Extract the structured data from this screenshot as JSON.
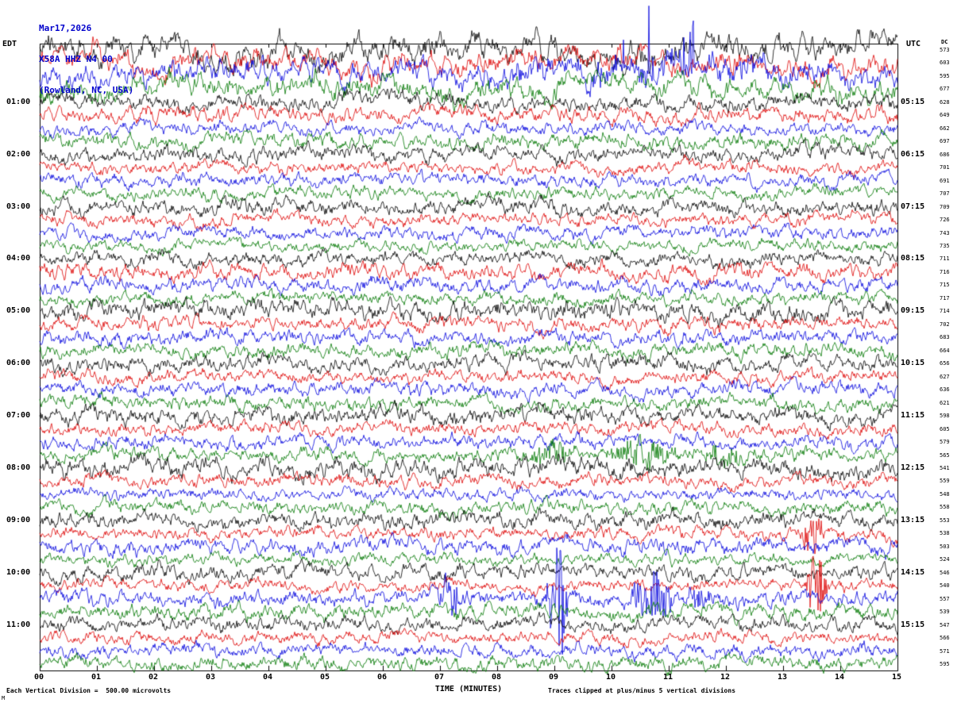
{
  "header": {
    "date": "Mar17,2026",
    "station": "X58A HHZ N4 00",
    "location": "(Rowland, NC, USA)"
  },
  "axes": {
    "left": "EDT",
    "right": "UTC",
    "dc": "DC"
  },
  "footer": {
    "left_note": "Each Vertical Division =  500.00 microvolts",
    "right_note": "Traces clipped at plus/minus 5 vertical divisions",
    "corner_mark": "M"
  },
  "chart_data": {
    "type": "line",
    "xlabel": "TIME (MINUTES)",
    "x_range": [
      0,
      15
    ],
    "x_ticks": [
      "00",
      "01",
      "02",
      "03",
      "04",
      "05",
      "06",
      "07",
      "08",
      "09",
      "10",
      "11",
      "12",
      "13",
      "14",
      "15"
    ],
    "row_duration_minutes": 15,
    "rows_per_hour": 4,
    "division_microvolts": 500,
    "clip_divisions": 5,
    "trace_colors": {
      "black": "#000000",
      "red": "#dd0000",
      "blue": "#0000dd",
      "green": "#007700"
    },
    "color_cycle": [
      "black",
      "red",
      "blue",
      "green"
    ],
    "rows": [
      {
        "edt": "",
        "utc": "",
        "dc": 573
      },
      {
        "edt": "",
        "utc": "",
        "dc": 603
      },
      {
        "edt": "",
        "utc": "",
        "dc": 595
      },
      {
        "edt": "",
        "utc": "",
        "dc": 677
      },
      {
        "edt": "01:00",
        "utc": "05:15",
        "dc": 628
      },
      {
        "edt": "",
        "utc": "",
        "dc": 649
      },
      {
        "edt": "",
        "utc": "",
        "dc": 662
      },
      {
        "edt": "",
        "utc": "",
        "dc": 697
      },
      {
        "edt": "02:00",
        "utc": "06:15",
        "dc": 686
      },
      {
        "edt": "",
        "utc": "",
        "dc": 701
      },
      {
        "edt": "",
        "utc": "",
        "dc": 691
      },
      {
        "edt": "",
        "utc": "",
        "dc": 707
      },
      {
        "edt": "03:00",
        "utc": "07:15",
        "dc": 709
      },
      {
        "edt": "",
        "utc": "",
        "dc": 726
      },
      {
        "edt": "",
        "utc": "",
        "dc": 743
      },
      {
        "edt": "",
        "utc": "",
        "dc": 735
      },
      {
        "edt": "04:00",
        "utc": "08:15",
        "dc": 711
      },
      {
        "edt": "",
        "utc": "",
        "dc": 716
      },
      {
        "edt": "",
        "utc": "",
        "dc": 715
      },
      {
        "edt": "",
        "utc": "",
        "dc": 717
      },
      {
        "edt": "05:00",
        "utc": "09:15",
        "dc": 714
      },
      {
        "edt": "",
        "utc": "",
        "dc": 702
      },
      {
        "edt": "",
        "utc": "",
        "dc": 683
      },
      {
        "edt": "",
        "utc": "",
        "dc": 664
      },
      {
        "edt": "06:00",
        "utc": "10:15",
        "dc": 656
      },
      {
        "edt": "",
        "utc": "",
        "dc": 627
      },
      {
        "edt": "",
        "utc": "",
        "dc": 636
      },
      {
        "edt": "",
        "utc": "",
        "dc": 621
      },
      {
        "edt": "07:00",
        "utc": "11:15",
        "dc": 598
      },
      {
        "edt": "",
        "utc": "",
        "dc": 605
      },
      {
        "edt": "",
        "utc": "",
        "dc": 579
      },
      {
        "edt": "",
        "utc": "",
        "dc": 565
      },
      {
        "edt": "08:00",
        "utc": "12:15",
        "dc": 541
      },
      {
        "edt": "",
        "utc": "",
        "dc": 559
      },
      {
        "edt": "",
        "utc": "",
        "dc": 548
      },
      {
        "edt": "",
        "utc": "",
        "dc": 558
      },
      {
        "edt": "09:00",
        "utc": "13:15",
        "dc": 553
      },
      {
        "edt": "",
        "utc": "",
        "dc": 538
      },
      {
        "edt": "",
        "utc": "",
        "dc": 503
      },
      {
        "edt": "",
        "utc": "",
        "dc": 524
      },
      {
        "edt": "10:00",
        "utc": "14:15",
        "dc": 546
      },
      {
        "edt": "",
        "utc": "",
        "dc": 540
      },
      {
        "edt": "",
        "utc": "",
        "dc": 557
      },
      {
        "edt": "",
        "utc": "",
        "dc": 539
      },
      {
        "edt": "11:00",
        "utc": "15:15",
        "dc": 547
      },
      {
        "edt": "",
        "utc": "",
        "dc": 566
      },
      {
        "edt": "",
        "utc": "",
        "dc": 571
      },
      {
        "edt": "",
        "utc": "",
        "dc": 595
      }
    ],
    "events": [
      {
        "row": 2,
        "start": 9.9,
        "end": 11.7,
        "amp": 85,
        "mode": "spike"
      },
      {
        "row": 2,
        "start": 7.3,
        "end": 13.5,
        "amp": 8,
        "mode": "burst"
      },
      {
        "row": 31,
        "start": 8.6,
        "end": 9.4,
        "amp": 14,
        "mode": "burst"
      },
      {
        "row": 31,
        "start": 9.9,
        "end": 11.2,
        "amp": 16,
        "mode": "burst"
      },
      {
        "row": 31,
        "start": 11.6,
        "end": 12.3,
        "amp": 12,
        "mode": "burst"
      },
      {
        "row": 37,
        "start": 13.3,
        "end": 13.7,
        "amp": 24,
        "mode": "burst"
      },
      {
        "row": 41,
        "start": 13.4,
        "end": 13.8,
        "amp": 34,
        "mode": "burst"
      },
      {
        "row": 42,
        "start": 6.95,
        "end": 7.35,
        "amp": 28,
        "mode": "burst"
      },
      {
        "row": 42,
        "start": 8.85,
        "end": 9.25,
        "amp": 80,
        "mode": "burst"
      },
      {
        "row": 42,
        "start": 10.3,
        "end": 11.1,
        "amp": 30,
        "mode": "burst"
      },
      {
        "row": 42,
        "start": 11.3,
        "end": 11.75,
        "amp": 14,
        "mode": "burst"
      }
    ]
  }
}
